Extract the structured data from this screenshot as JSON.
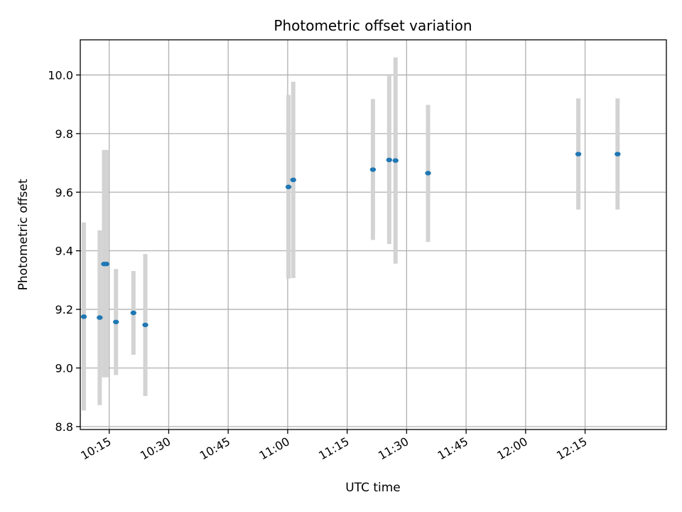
{
  "chart_data": {
    "type": "scatter",
    "title": "Photometric offset variation",
    "xlabel": "UTC time",
    "ylabel": "Photometric offset",
    "grid": true,
    "x_ticks": [
      "10:15",
      "10:30",
      "10:45",
      "11:00",
      "11:15",
      "11:30",
      "11:45",
      "12:00",
      "12:15"
    ],
    "y_ticks": [
      "8.8",
      "9.0",
      "9.2",
      "9.4",
      "9.6",
      "9.8",
      "10.0"
    ],
    "xlim": [
      "10:07.7",
      "12:35.5"
    ],
    "ylim": [
      8.79,
      10.12
    ],
    "point_color": "#1f77b4",
    "errorbar_color": "#d3d3d3",
    "series": [
      {
        "points": [
          {
            "x": "10:08.6",
            "y": 9.175,
            "err_low": 8.855,
            "err_high": 9.497
          },
          {
            "x": "10:12.6",
            "y": 9.172,
            "err_low": 8.873,
            "err_high": 9.47
          },
          {
            "x": "10:13.7",
            "y": 9.355,
            "err_low": 8.968,
            "err_high": 9.744
          },
          {
            "x": "10:14.3",
            "y": 9.355,
            "err_low": 8.968,
            "err_high": 9.744
          },
          {
            "x": "10:16.7",
            "y": 9.157,
            "err_low": 8.976,
            "err_high": 9.338
          },
          {
            "x": "10:21.1",
            "y": 9.188,
            "err_low": 9.045,
            "err_high": 9.331
          },
          {
            "x": "10:24.1",
            "y": 9.147,
            "err_low": 8.904,
            "err_high": 9.389
          },
          {
            "x": "11:00.2",
            "y": 9.618,
            "err_low": 9.305,
            "err_high": 9.932
          },
          {
            "x": "11:01.4",
            "y": 9.642,
            "err_low": 9.307,
            "err_high": 9.977
          },
          {
            "x": "11:21.5",
            "y": 9.677,
            "err_low": 9.437,
            "err_high": 9.918
          },
          {
            "x": "11:25.6",
            "y": 9.71,
            "err_low": 9.423,
            "err_high": 9.997
          },
          {
            "x": "11:27.2",
            "y": 9.708,
            "err_low": 9.356,
            "err_high": 10.06
          },
          {
            "x": "11:35.4",
            "y": 9.665,
            "err_low": 9.43,
            "err_high": 9.898
          },
          {
            "x": "12:13.3",
            "y": 9.73,
            "err_low": 9.541,
            "err_high": 9.92
          },
          {
            "x": "12:23.2",
            "y": 9.73,
            "err_low": 9.541,
            "err_high": 9.92
          }
        ]
      }
    ]
  }
}
